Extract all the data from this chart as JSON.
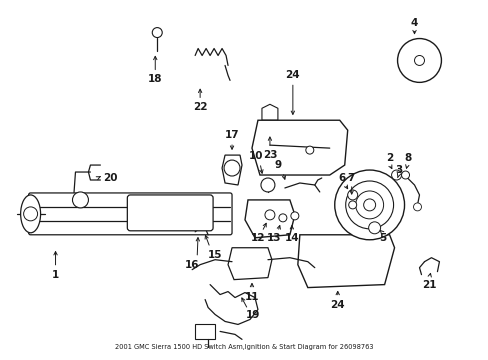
{
  "title": "2001 GMC Sierra 1500 HD Switch Asm,Ignition & Start Diagram for 26098763",
  "background_color": "#ffffff",
  "figsize": [
    4.89,
    3.6
  ],
  "dpi": 100,
  "line_color": "#1a1a1a",
  "label_fontsize": 7.5
}
